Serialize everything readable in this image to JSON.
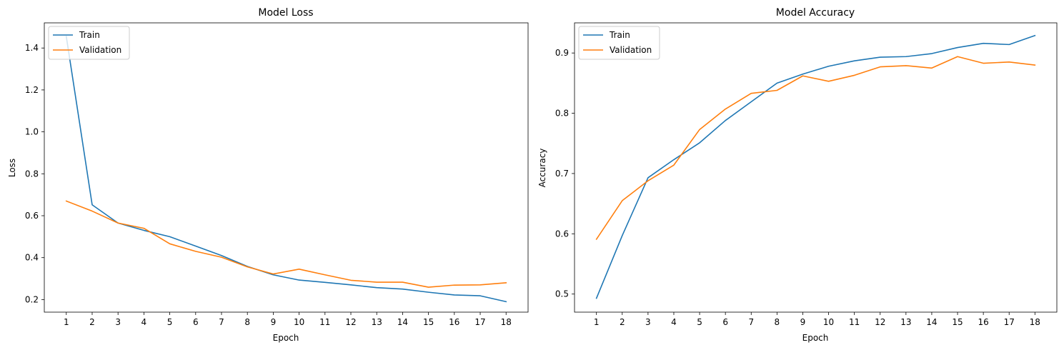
{
  "chart_data": [
    {
      "type": "line",
      "title": "Model Loss",
      "xlabel": "Epoch",
      "ylabel": "Loss",
      "x": [
        1,
        2,
        3,
        4,
        5,
        6,
        7,
        8,
        9,
        10,
        11,
        12,
        13,
        14,
        15,
        16,
        17,
        18
      ],
      "xlim": [
        0.15,
        18.85
      ],
      "ylim": [
        0.14,
        1.52
      ],
      "yticks": [
        0.2,
        0.4,
        0.6,
        0.8,
        1.0,
        1.2,
        1.4
      ],
      "ytick_labels": [
        "0.2",
        "0.4",
        "0.6",
        "0.8",
        "1.0",
        "1.2",
        "1.4"
      ],
      "grid": false,
      "legend_position": "top-left",
      "series": [
        {
          "name": "Train",
          "color": "#1f77b4",
          "values": [
            1.455,
            0.652,
            0.565,
            0.53,
            0.5,
            0.455,
            0.41,
            0.358,
            0.318,
            0.293,
            0.282,
            0.27,
            0.257,
            0.25,
            0.235,
            0.222,
            0.218,
            0.19
          ]
        },
        {
          "name": "Validation",
          "color": "#ff7f0e",
          "values": [
            0.67,
            0.622,
            0.565,
            0.54,
            0.466,
            0.43,
            0.402,
            0.356,
            0.322,
            0.345,
            0.318,
            0.292,
            0.283,
            0.283,
            0.259,
            0.269,
            0.27,
            0.28
          ]
        }
      ]
    },
    {
      "type": "line",
      "title": "Model Accuracy",
      "xlabel": "Epoch",
      "ylabel": "Accuracy",
      "x": [
        1,
        2,
        3,
        4,
        5,
        6,
        7,
        8,
        9,
        10,
        11,
        12,
        13,
        14,
        15,
        16,
        17,
        18
      ],
      "xlim": [
        0.15,
        18.85
      ],
      "ylim": [
        0.47,
        0.95
      ],
      "yticks": [
        0.5,
        0.6,
        0.7,
        0.8,
        0.9
      ],
      "ytick_labels": [
        "0.5",
        "0.6",
        "0.7",
        "0.8",
        "0.9"
      ],
      "grid": false,
      "legend_position": "top-left",
      "series": [
        {
          "name": "Train",
          "color": "#1f77b4",
          "values": [
            0.493,
            0.597,
            0.693,
            0.723,
            0.751,
            0.788,
            0.819,
            0.85,
            0.865,
            0.878,
            0.887,
            0.893,
            0.894,
            0.899,
            0.909,
            0.916,
            0.914,
            0.929
          ]
        },
        {
          "name": "Validation",
          "color": "#ff7f0e",
          "values": [
            0.591,
            0.655,
            0.688,
            0.714,
            0.773,
            0.807,
            0.833,
            0.838,
            0.862,
            0.853,
            0.863,
            0.877,
            0.879,
            0.875,
            0.894,
            0.883,
            0.885,
            0.88
          ]
        }
      ]
    }
  ]
}
